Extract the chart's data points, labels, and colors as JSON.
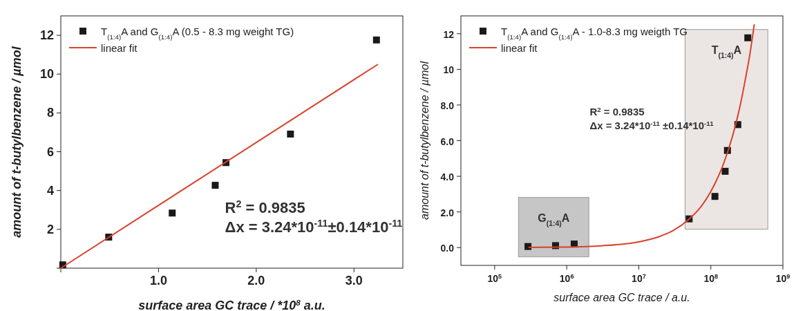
{
  "chart_data": [
    {
      "type": "scatter",
      "xlabel": "surface area GC trace / *10$^{8}$ a.u.",
      "ylabel": "amount of t-butylbenzene  / µmol",
      "xlim": [
        0,
        3.5
      ],
      "ylim": [
        0,
        13
      ],
      "xticks": [
        {
          "value": 0,
          "label": null
        },
        {
          "value": 1,
          "label": "1.0"
        },
        {
          "value": 2,
          "label": "2.0"
        },
        {
          "value": 3,
          "label": "3.0"
        }
      ],
      "yticks": [
        {
          "value": 0,
          "label": null
        },
        2,
        4,
        6,
        8,
        10,
        12
      ],
      "legend": "top left",
      "grid": false,
      "series": [
        {
          "name": "T$_{(1:4)}$A and G$_{(1:4)}$A (0.5 - 8.3 mg weight TG)",
          "marker": "square",
          "color": "#1a1a1a",
          "x": [
            0.02,
            0.49,
            1.14,
            1.58,
            1.69,
            2.35,
            3.23
          ],
          "values": [
            0.17,
            1.6,
            2.84,
            4.27,
            5.44,
            6.91,
            11.76
          ]
        },
        {
          "name": "linear fit",
          "type": "line",
          "color": "#d9412b",
          "x": [
            0,
            3.24
          ],
          "values": [
            0,
            10.49
          ]
        }
      ],
      "annotations": [
        "R$^{2}$ = 0.9835",
        "Δx = 3.24*10$^{-11}$±0.14*10$^{-11}$"
      ]
    },
    {
      "type": "scatter",
      "xlabel": "surface area GC trace / a.u.",
      "ylabel": "amount of t-butylbenzene  / µmol",
      "log": "x",
      "xlim": [
        34000,
        1000000000
      ],
      "ylim": [
        -1,
        13
      ],
      "xticks": [
        {
          "value": 100000,
          "label": "10$^{5}$"
        },
        {
          "value": 1000000,
          "label": "10$^{6}$"
        },
        {
          "value": 10000000,
          "label": "10$^{7}$"
        },
        {
          "value": 100000000,
          "label": "10$^{8}$"
        },
        {
          "value": 1000000000,
          "label": "10$^{9}$"
        }
      ],
      "yticks": [
        {
          "value": 0,
          "label": "0.0"
        },
        {
          "value": 2,
          "label": "2.0"
        },
        {
          "value": 4,
          "label": "4.0"
        },
        {
          "value": 6,
          "label": "6.0"
        },
        {
          "value": 8,
          "label": "8.0"
        },
        10,
        12
      ],
      "legend": "top left",
      "grid": false,
      "bands": [
        {
          "axis": "x",
          "from": 214000,
          "to": 2030000,
          "label": "G$_{(1:4)}$A",
          "color": "#c6c6c6"
        },
        {
          "axis": "x",
          "from": 43900000,
          "to": 618000000,
          "label": "T$_{(1:4)}$A",
          "color": "#ebe6e3"
        }
      ],
      "series": [
        {
          "name": "T$_{(1:4)}$A and G$_{(1:4)}$A - 1.0-8.3 mg weigth TG",
          "marker": "square",
          "color": "#1a1a1a",
          "x": [
            290000,
            700000,
            1270000,
            50000000,
            114000000,
            158000000,
            170000000,
            237000000,
            326000000
          ],
          "values": [
            0.06,
            0.11,
            0.2,
            1.61,
            2.87,
            4.28,
            5.45,
            6.9,
            11.77
          ]
        },
        {
          "name": "linear fit",
          "type": "line",
          "color": "#d9412b",
          "x": [
            300000,
            1000000,
            3000000,
            10000000,
            20000000,
            30000000,
            50000000,
            70000000,
            100000000,
            150000000,
            200000000,
            250000000,
            300000000,
            350000000,
            400000000
          ],
          "values": [
            0.01,
            0.03,
            0.1,
            0.32,
            0.64,
            0.95,
            1.6,
            2.2,
            3.15,
            4.7,
            6.25,
            7.8,
            9.4,
            10.9,
            12.5
          ]
        }
      ],
      "annotations": [
        "R$^{2}$ = 0.9835",
        "Δx = 3.24*10$^{-11}$ ±0.14*10$^{-11}$"
      ]
    }
  ]
}
